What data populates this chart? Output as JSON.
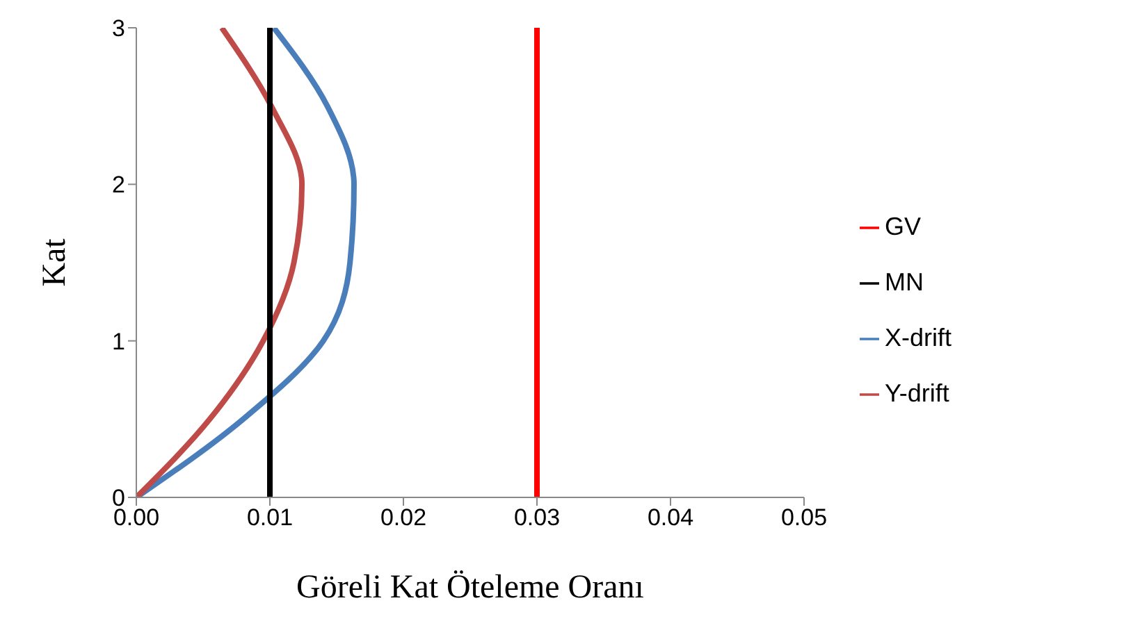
{
  "chart_data": {
    "type": "line",
    "xlabel": "Göreli Kat Öteleme Oranı",
    "ylabel": "Kat",
    "xlim": [
      0,
      0.05
    ],
    "xticks": [
      {
        "value": 0,
        "label": "0.00"
      },
      {
        "value": 0.01,
        "label": "0.01"
      },
      {
        "value": 0.02,
        "label": "0.02"
      },
      {
        "value": 0.03,
        "label": "0.03"
      },
      {
        "value": 0.04,
        "label": "0.04"
      },
      {
        "value": 0.05,
        "label": "0.05"
      }
    ],
    "ylim": [
      0,
      3
    ],
    "yticks": [
      0,
      1,
      2,
      3
    ],
    "grid": false,
    "legend": "right",
    "marker": "none",
    "line_style": "solid",
    "series": [
      {
        "name": "X-drift",
        "color": "#4a7ebb",
        "x": [
          0,
          0.008,
          0.014,
          0.016,
          0.0163,
          0.0143,
          0.0103
        ],
        "values": [
          0,
          0.5,
          1,
          1.5,
          2,
          2.5,
          3
        ]
      },
      {
        "name": "Y-drift",
        "color": "#be4b48",
        "x": [
          0,
          0.0055,
          0.0095,
          0.0118,
          0.0124,
          0.0101,
          0.0064
        ],
        "values": [
          0,
          0.5,
          1,
          1.5,
          2,
          2.5,
          3
        ]
      },
      {
        "name": "GV",
        "color": "#ff0000",
        "x": [
          0.03,
          0.03
        ],
        "values": [
          0,
          3
        ]
      },
      {
        "name": "MN",
        "color": "#000000",
        "x": [
          0.01,
          0.01
        ],
        "values": [
          0,
          3
        ]
      }
    ]
  }
}
